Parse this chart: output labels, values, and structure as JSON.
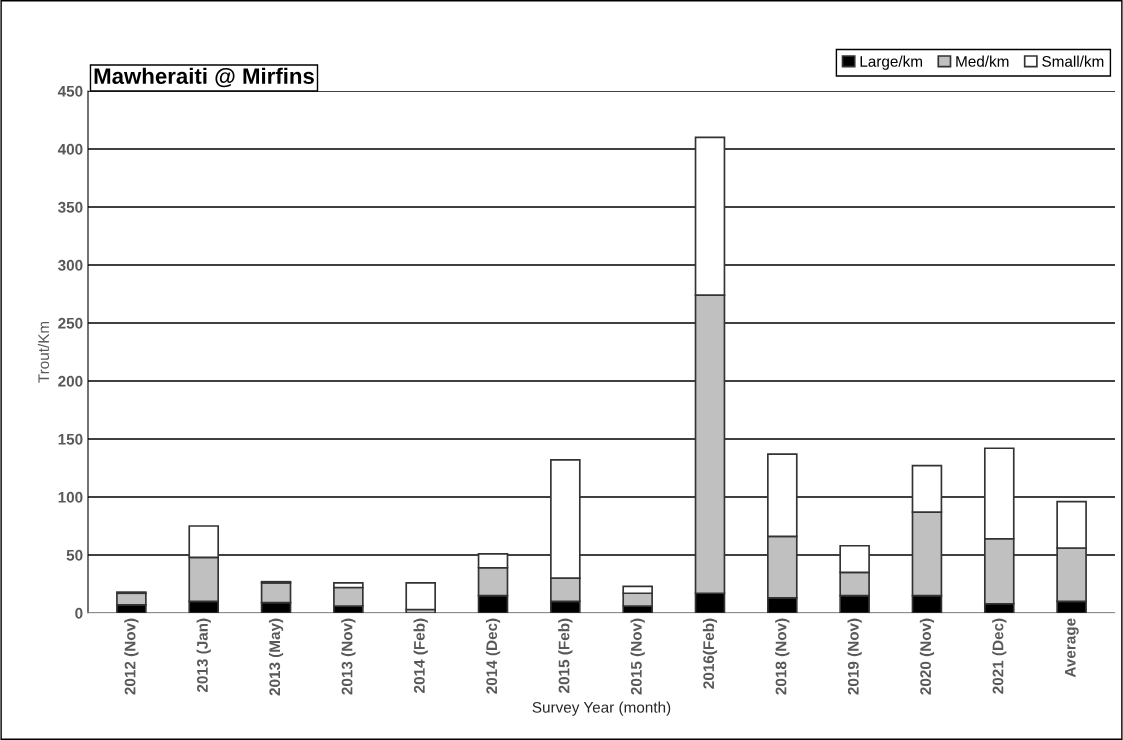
{
  "chart_data": {
    "type": "bar",
    "title": "Mawheraiti @ Mirfins",
    "xlabel": "Survey Year (month)",
    "ylabel": "Trout/Km",
    "categories": [
      "2012 (Nov)",
      "2013 (Jan)",
      "2013 (May)",
      "2013 (Nov)",
      "2014 (Feb)",
      "2014 (Dec)",
      "2015 (Feb)",
      "2015 (Nov)",
      "2016(Feb)",
      "2018 (Nov)",
      "2019 (Nov)",
      "2020 (Nov)",
      "2021 (Dec)",
      "Average"
    ],
    "stacked": true,
    "series": [
      {
        "name": "Large/km",
        "color": "#000000",
        "values": [
          7,
          10,
          9,
          6,
          null,
          15,
          10,
          6,
          17,
          13,
          15,
          15,
          8,
          10
        ]
      },
      {
        "name": "Med/km",
        "color": "#c0c0c0",
        "values": [
          10,
          38,
          17,
          16,
          3,
          24,
          20,
          11,
          257,
          53,
          20,
          72,
          56,
          46
        ]
      },
      {
        "name": "Small/km",
        "color": "#ffffff",
        "values": [
          1,
          27,
          1,
          4,
          23,
          12,
          102,
          6,
          136,
          71,
          23,
          40,
          78,
          40
        ]
      }
    ],
    "ylim": [
      0,
      450
    ],
    "yticks": [
      0,
      50,
      100,
      150,
      200,
      250,
      300,
      350,
      400,
      450
    ],
    "grid": "y",
    "legend": "top right"
  }
}
